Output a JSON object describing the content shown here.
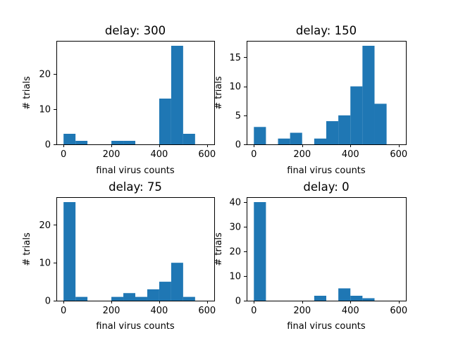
{
  "chart_data": [
    {
      "type": "bar",
      "title": "delay: 300",
      "xlabel": "final virus counts",
      "ylabel": "# trials",
      "bin_edges": [
        0,
        50,
        100,
        150,
        200,
        250,
        300,
        350,
        400,
        450,
        500,
        550
      ],
      "values": [
        3,
        1,
        0,
        0,
        1,
        1,
        0,
        0,
        13,
        28,
        3
      ],
      "xlim": [
        -30,
        630
      ],
      "ylim": [
        0,
        29.4
      ],
      "xticks": [
        0,
        200,
        400,
        600
      ],
      "yticks": [
        0,
        10,
        20
      ],
      "xtick_labels": [
        "0",
        "200",
        "400",
        "600"
      ],
      "ytick_labels": [
        "0",
        "10",
        "20"
      ],
      "color": "#1f77b4",
      "grid": false
    },
    {
      "type": "bar",
      "title": "delay: 150",
      "xlabel": "final virus counts",
      "ylabel": "# trials",
      "bin_edges": [
        0,
        50,
        100,
        150,
        200,
        250,
        300,
        350,
        400,
        450,
        500,
        550
      ],
      "values": [
        3,
        0,
        1,
        2,
        0,
        1,
        4,
        5,
        10,
        17,
        7
      ],
      "xlim": [
        -30,
        630
      ],
      "ylim": [
        0,
        17.85
      ],
      "xticks": [
        0,
        200,
        400,
        600
      ],
      "yticks": [
        0,
        5,
        10,
        15
      ],
      "xtick_labels": [
        "0",
        "200",
        "400",
        "600"
      ],
      "ytick_labels": [
        "0",
        "5",
        "10",
        "15"
      ],
      "color": "#1f77b4",
      "grid": false
    },
    {
      "type": "bar",
      "title": "delay: 75",
      "xlabel": "final virus counts",
      "ylabel": "# trials",
      "bin_edges": [
        0,
        50,
        100,
        150,
        200,
        250,
        300,
        350,
        400,
        450,
        500,
        550
      ],
      "values": [
        26,
        1,
        0,
        0,
        1,
        2,
        1,
        3,
        5,
        10,
        1
      ],
      "xlim": [
        -30,
        630
      ],
      "ylim": [
        0,
        27.3
      ],
      "xticks": [
        0,
        200,
        400,
        600
      ],
      "yticks": [
        0,
        10,
        20
      ],
      "xtick_labels": [
        "0",
        "200",
        "400",
        "600"
      ],
      "ytick_labels": [
        "0",
        "10",
        "20"
      ],
      "color": "#1f77b4",
      "grid": false
    },
    {
      "type": "bar",
      "title": "delay: 0",
      "xlabel": "final virus counts",
      "ylabel": "# trials",
      "bin_edges": [
        0,
        50,
        100,
        150,
        200,
        250,
        300,
        350,
        400,
        450,
        500,
        550,
        600
      ],
      "values": [
        40,
        0,
        0,
        0,
        0,
        2,
        0,
        5,
        2,
        1,
        0,
        0
      ],
      "xlim": [
        -30,
        630
      ],
      "ylim": [
        0,
        42
      ],
      "xticks": [
        0,
        200,
        400,
        600
      ],
      "yticks": [
        0,
        10,
        20,
        30,
        40
      ],
      "xtick_labels": [
        "0",
        "200",
        "400",
        "600"
      ],
      "ytick_labels": [
        "0",
        "10",
        "20",
        "30",
        "40"
      ],
      "color": "#1f77b4",
      "grid": false
    }
  ]
}
